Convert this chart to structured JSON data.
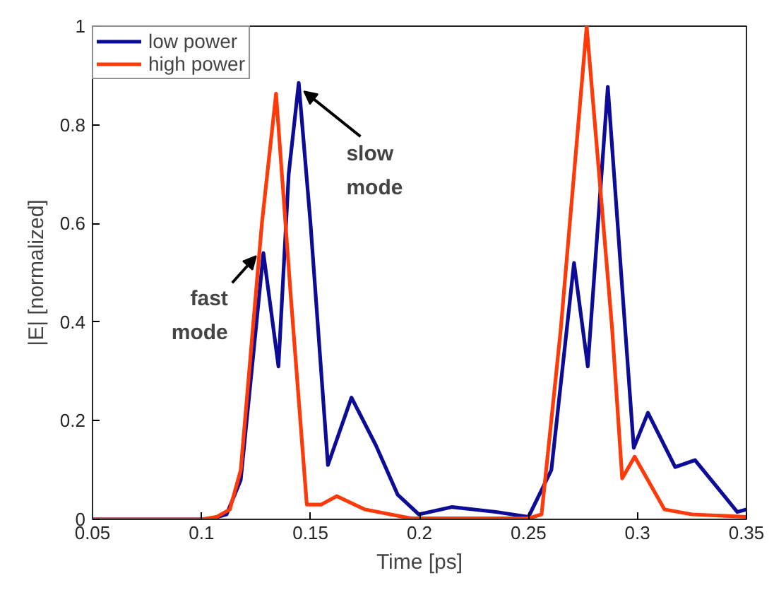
{
  "chart_data": {
    "type": "line",
    "xlabel": "Time [ps]",
    "ylabel": "|E| [normalized]",
    "xlim": [
      0.05,
      0.35
    ],
    "ylim": [
      0,
      1
    ],
    "xticks": [
      0.05,
      0.1,
      0.15,
      0.2,
      0.25,
      0.3,
      0.35
    ],
    "yticks": [
      0,
      0.2,
      0.4,
      0.6,
      0.8,
      1
    ],
    "grid": false,
    "legend": "top left",
    "line_style": "solid",
    "series": [
      {
        "name": "low power",
        "color": "#0c0c96",
        "x": [
          0.05,
          0.1,
          0.105,
          0.1115,
          0.118,
          0.123,
          0.1284,
          0.1353,
          0.14,
          0.1446,
          0.15,
          0.158,
          0.1688,
          0.18,
          0.19,
          0.1997,
          0.215,
          0.235,
          0.25,
          0.2605,
          0.2709,
          0.2772,
          0.2864,
          0.2925,
          0.2983,
          0.3048,
          0.3173,
          0.3264,
          0.3458,
          0.35
        ],
        "values": [
          0,
          0,
          0.002,
          0.01,
          0.08,
          0.3,
          0.54,
          0.31,
          0.7,
          0.885,
          0.6,
          0.11,
          0.247,
          0.15,
          0.05,
          0.01,
          0.025,
          0.015,
          0.005,
          0.1,
          0.52,
          0.31,
          0.877,
          0.5,
          0.145,
          0.216,
          0.106,
          0.12,
          0.015,
          0.02
        ]
      },
      {
        "name": "high power",
        "color": "#ff3a0a",
        "x": [
          0.05,
          0.1,
          0.107,
          0.113,
          0.118,
          0.1277,
          0.1342,
          0.141,
          0.1483,
          0.155,
          0.162,
          0.175,
          0.196,
          0.25,
          0.256,
          0.2648,
          0.2767,
          0.2884,
          0.293,
          0.2987,
          0.3124,
          0.325,
          0.35
        ],
        "values": [
          0,
          0,
          0.005,
          0.02,
          0.1,
          0.6,
          0.863,
          0.45,
          0.03,
          0.03,
          0.047,
          0.02,
          0.002,
          0.002,
          0.01,
          0.385,
          1.0,
          0.385,
          0.083,
          0.127,
          0.02,
          0.01,
          0.005
        ]
      }
    ],
    "annotations": [
      {
        "text": "slow mode",
        "x": 0.147,
        "y": 0.868
      },
      {
        "text": "fast mode",
        "x": 0.1251,
        "y": 0.534
      }
    ]
  }
}
